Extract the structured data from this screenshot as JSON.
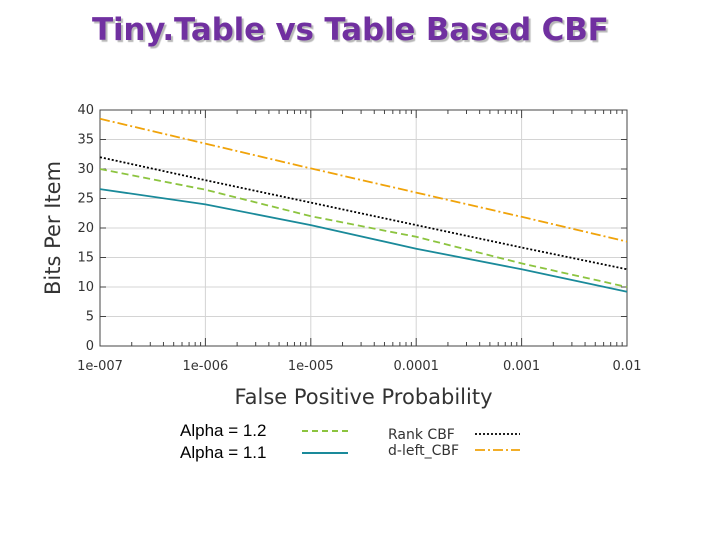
{
  "title": "Tiny.Table vs Table Based CBF",
  "chart_data": {
    "type": "line",
    "title": "Tiny.Table vs Table Based CBF",
    "xlabel": "False Positive Probability",
    "ylabel": "Bits Per Item",
    "xscale": "log",
    "x": [
      1e-07,
      1e-06,
      1e-05,
      0.0001,
      0.001,
      0.01
    ],
    "x_tick_labels": [
      "1e-007",
      "1e-006",
      "1e-005",
      "0.0001",
      "0.001",
      "0.01"
    ],
    "y_ticks": [
      0,
      5,
      10,
      15,
      20,
      25,
      30,
      35,
      40
    ],
    "ylim": [
      0,
      40
    ],
    "grid": true,
    "series": [
      {
        "name": "Rank CBF",
        "color": "#000000",
        "dash": "dotted",
        "values": [
          32.0,
          28.1,
          24.3,
          20.5,
          16.7,
          13.0
        ]
      },
      {
        "name": "d-left_CBF",
        "color": "#f0a30a",
        "dash": "dash-dot",
        "values": [
          38.5,
          34.3,
          30.1,
          26.0,
          21.9,
          17.7
        ]
      },
      {
        "name": "Alpha = 1.2",
        "color": "#8cc43f",
        "dash": "dashed",
        "values": [
          30.0,
          26.5,
          22.0,
          18.5,
          14.0,
          10.0
        ]
      },
      {
        "name": "Alpha = 1.1",
        "color": "#1a8a9a",
        "dash": "solid",
        "values": [
          26.6,
          24.0,
          20.5,
          16.5,
          13.0,
          9.2
        ]
      }
    ],
    "legend": {
      "chart_legend": [
        "Rank CBF",
        "d-left_CBF"
      ],
      "alpha_legend": [
        "Alpha = 1.2",
        "Alpha = 1.1"
      ]
    }
  }
}
